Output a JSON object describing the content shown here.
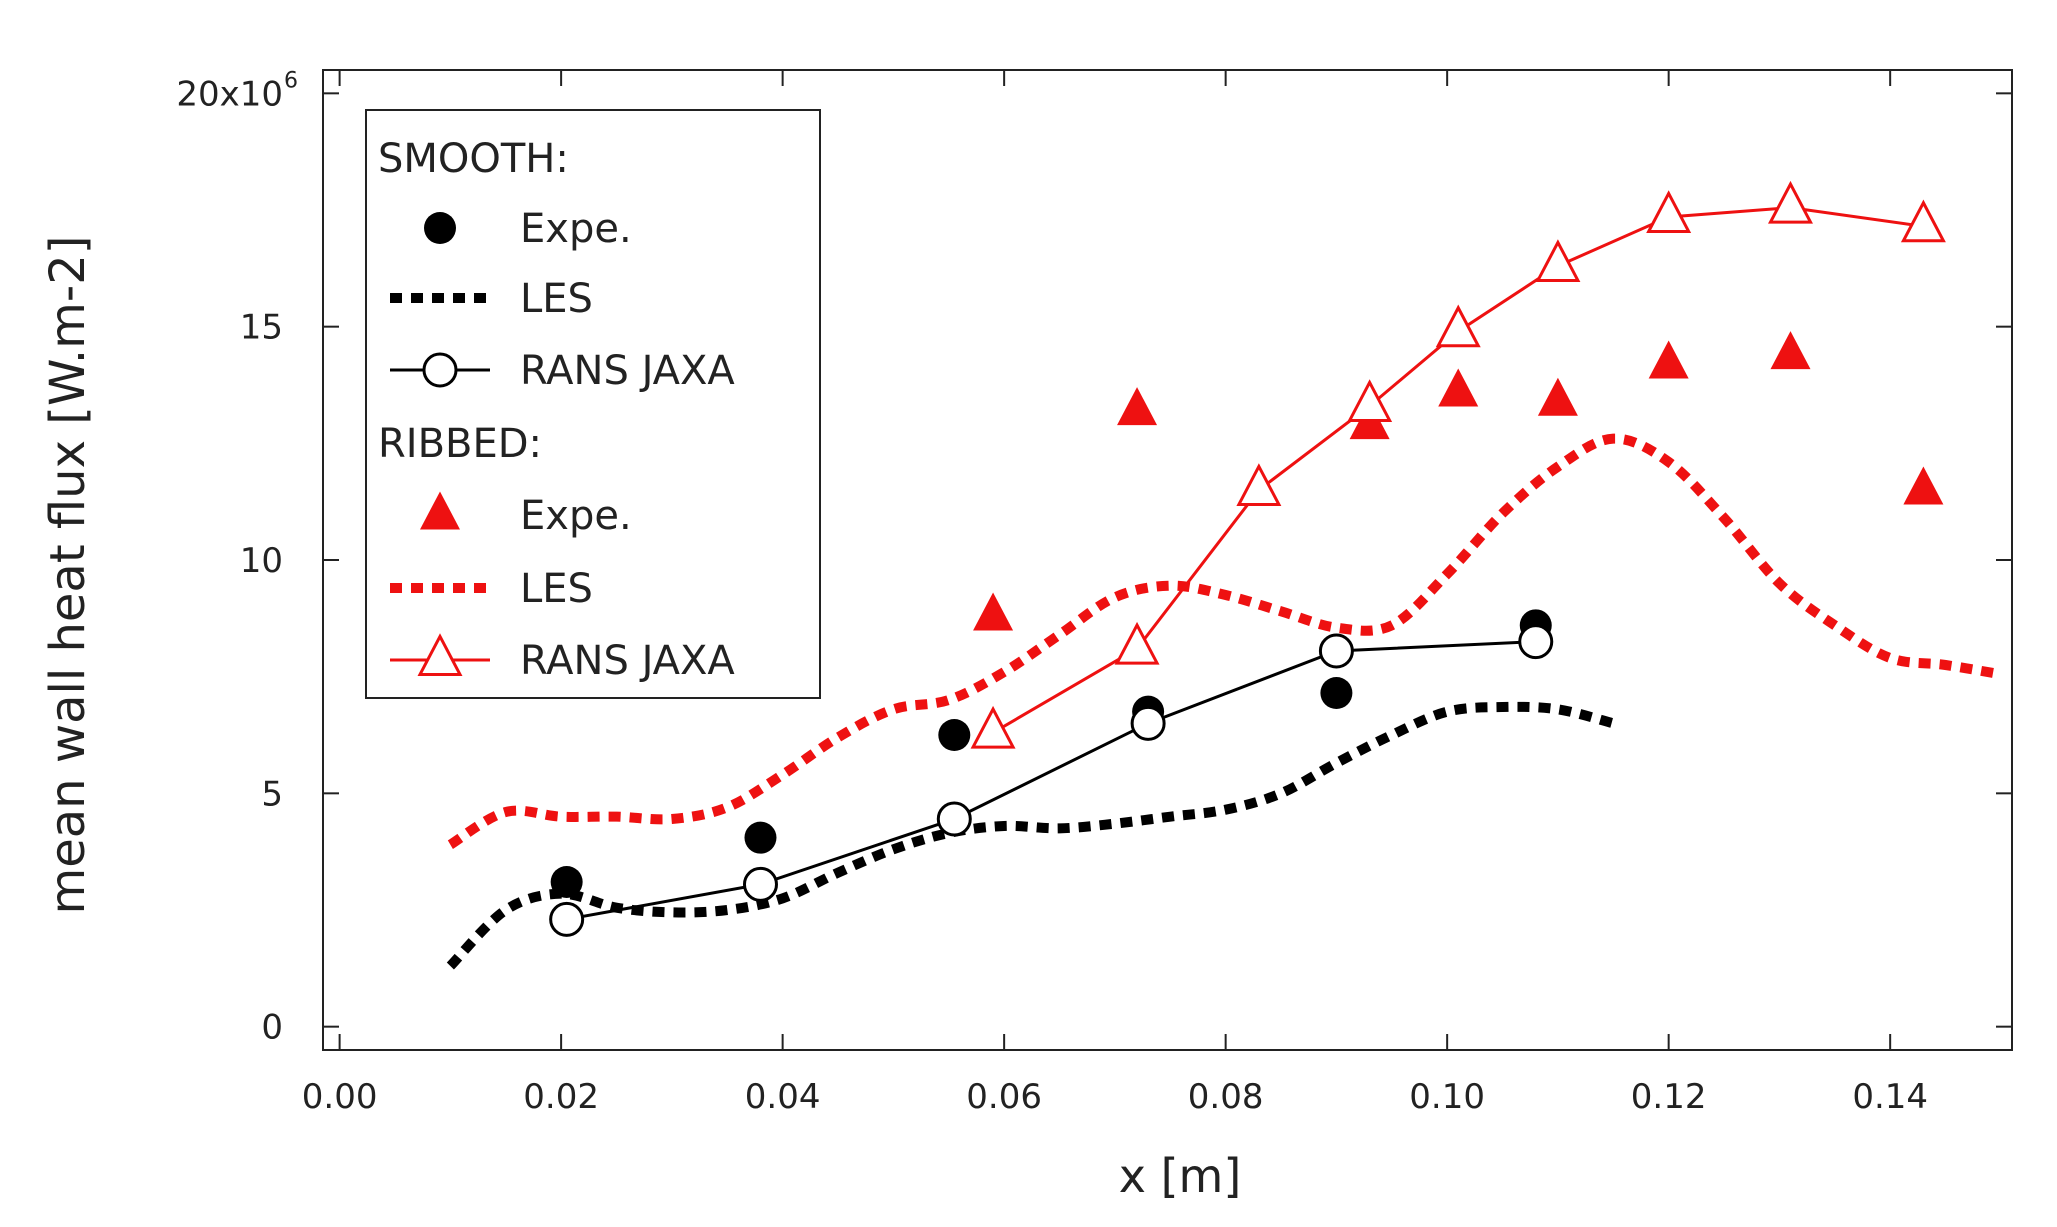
{
  "chart_data": {
    "type": "line",
    "xlabel": "x [m]",
    "ylabel": "mean wall heat flux [W.m-2]",
    "xlim": [
      -0.0015,
      0.151
    ],
    "ylim": [
      -0.5,
      20.5
    ],
    "x_ticks": [
      0.0,
      0.02,
      0.04,
      0.06,
      0.08,
      0.1,
      0.12,
      0.14
    ],
    "x_tick_labels": [
      "0.00",
      "0.02",
      "0.04",
      "0.06",
      "0.08",
      "0.10",
      "0.12",
      "0.14"
    ],
    "y_ticks": [
      0,
      5,
      10,
      15,
      20
    ],
    "y_tick_labels": [
      "0",
      "5",
      "10",
      "15",
      "20x10"
    ],
    "y_top_exponent": "6",
    "grid": false,
    "legend_position": "top-left",
    "legend_groups": [
      {
        "title": "SMOOTH:",
        "entries": [
          "Expe.",
          "LES",
          "RANS JAXA"
        ]
      },
      {
        "title": "RIBBED:",
        "entries": [
          "Expe.",
          "LES",
          "RANS JAXA"
        ]
      }
    ],
    "colors": {
      "smooth": "#000000",
      "ribbed": "#ee1111"
    },
    "series": [
      {
        "group": "SMOOTH",
        "name": "Expe.",
        "kind": "marker",
        "marker": "filled-circle",
        "color": "#000000",
        "points": [
          [
            0.0205,
            3.1
          ],
          [
            0.038,
            4.05
          ],
          [
            0.0555,
            6.25
          ],
          [
            0.073,
            6.75
          ],
          [
            0.09,
            7.15
          ],
          [
            0.108,
            8.6
          ]
        ]
      },
      {
        "group": "SMOOTH",
        "name": "LES",
        "kind": "line",
        "dash": "dotted",
        "color": "#000000",
        "points": [
          [
            0.01,
            1.3
          ],
          [
            0.015,
            2.5
          ],
          [
            0.02,
            2.85
          ],
          [
            0.025,
            2.55
          ],
          [
            0.03,
            2.45
          ],
          [
            0.035,
            2.5
          ],
          [
            0.04,
            2.75
          ],
          [
            0.045,
            3.3
          ],
          [
            0.05,
            3.8
          ],
          [
            0.055,
            4.15
          ],
          [
            0.06,
            4.3
          ],
          [
            0.065,
            4.25
          ],
          [
            0.07,
            4.35
          ],
          [
            0.075,
            4.5
          ],
          [
            0.08,
            4.65
          ],
          [
            0.085,
            5.0
          ],
          [
            0.09,
            5.65
          ],
          [
            0.095,
            6.25
          ],
          [
            0.1,
            6.75
          ],
          [
            0.105,
            6.85
          ],
          [
            0.11,
            6.8
          ],
          [
            0.115,
            6.5
          ]
        ]
      },
      {
        "group": "SMOOTH",
        "name": "RANS JAXA",
        "kind": "line-marker",
        "marker": "open-circle",
        "color": "#000000",
        "points": [
          [
            0.0205,
            2.3
          ],
          [
            0.038,
            3.05
          ],
          [
            0.0555,
            4.45
          ],
          [
            0.073,
            6.5
          ],
          [
            0.09,
            8.05
          ],
          [
            0.108,
            8.25
          ]
        ]
      },
      {
        "group": "RIBBED",
        "name": "Expe.",
        "kind": "marker",
        "marker": "filled-triangle",
        "color": "#ee1111",
        "points": [
          [
            0.059,
            8.8
          ],
          [
            0.072,
            13.2
          ],
          [
            0.083,
            11.5
          ],
          [
            0.093,
            12.9
          ],
          [
            0.101,
            13.6
          ],
          [
            0.11,
            13.4
          ],
          [
            0.12,
            14.2
          ],
          [
            0.131,
            14.4
          ],
          [
            0.143,
            11.5
          ]
        ]
      },
      {
        "group": "RIBBED",
        "name": "LES",
        "kind": "line",
        "dash": "dotted",
        "color": "#ee1111",
        "points": [
          [
            0.01,
            3.9
          ],
          [
            0.015,
            4.6
          ],
          [
            0.02,
            4.5
          ],
          [
            0.025,
            4.5
          ],
          [
            0.03,
            4.45
          ],
          [
            0.035,
            4.7
          ],
          [
            0.04,
            5.4
          ],
          [
            0.045,
            6.2
          ],
          [
            0.05,
            6.8
          ],
          [
            0.055,
            7.0
          ],
          [
            0.06,
            7.6
          ],
          [
            0.065,
            8.4
          ],
          [
            0.07,
            9.2
          ],
          [
            0.075,
            9.45
          ],
          [
            0.08,
            9.25
          ],
          [
            0.085,
            8.9
          ],
          [
            0.09,
            8.55
          ],
          [
            0.095,
            8.6
          ],
          [
            0.1,
            9.7
          ],
          [
            0.105,
            11.0
          ],
          [
            0.11,
            12.0
          ],
          [
            0.115,
            12.6
          ],
          [
            0.12,
            12.1
          ],
          [
            0.125,
            10.9
          ],
          [
            0.13,
            9.5
          ],
          [
            0.135,
            8.6
          ],
          [
            0.14,
            7.9
          ],
          [
            0.145,
            7.75
          ],
          [
            0.15,
            7.55
          ]
        ]
      },
      {
        "group": "RIBBED",
        "name": "RANS JAXA",
        "kind": "line-marker",
        "marker": "open-triangle",
        "color": "#ee1111",
        "points": [
          [
            0.059,
            6.3
          ],
          [
            0.072,
            8.1
          ],
          [
            0.083,
            11.5
          ],
          [
            0.093,
            13.3
          ],
          [
            0.101,
            14.9
          ],
          [
            0.11,
            16.3
          ],
          [
            0.12,
            17.35
          ],
          [
            0.131,
            17.55
          ],
          [
            0.143,
            17.15
          ]
        ]
      }
    ]
  }
}
